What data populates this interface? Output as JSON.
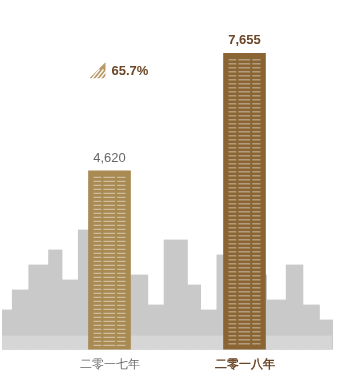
{
  "chart_data": {
    "type": "bar",
    "categories": [
      "二零一七年",
      "二零一八年"
    ],
    "values": [
      4620,
      7655
    ],
    "value_labels": [
      "4,620",
      "7,655"
    ],
    "colors": [
      "#a88a52",
      "#8a6533"
    ],
    "data_labels": true,
    "annotation": "65.7%",
    "ylim": [
      0,
      8000
    ],
    "grid": false,
    "tick_labels": "x"
  }
}
